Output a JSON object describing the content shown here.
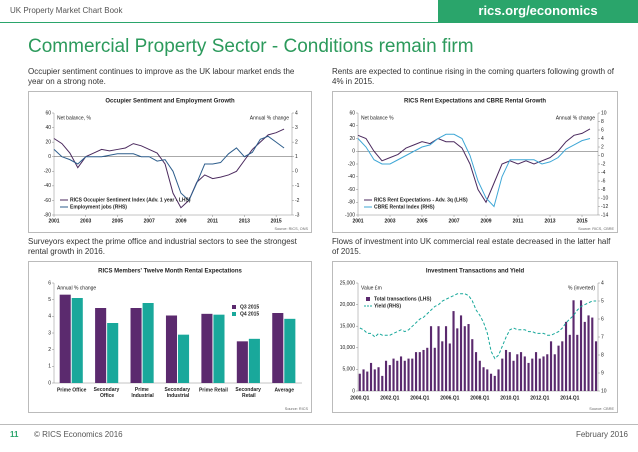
{
  "header": {
    "book_title": "UK Property Market Chart Book",
    "url": "rics.org/economics",
    "title": "Commercial Property Sector - Conditions remain firm"
  },
  "paragraphs": [
    "Occupier sentiment continues to improve as the UK labour market ends the year on a strong note.",
    "Rents are expected to continue rising in the coming quarters following growth of 4% in 2015.",
    "Surveyors expect the prime office and industrial sectors to see the strongest rental growth in 2016.",
    "Flows of investment into UK commercial real estate decreased in the latter half of 2015."
  ],
  "footer": {
    "page": "11",
    "copyright": "© RICS Economics 2016",
    "date": "February 2016"
  },
  "chart_data": [
    {
      "type": "line",
      "title": "Occupier Sentiment and Employment Growth",
      "ylabel": "Net balance, %",
      "y2label": "Annual % change",
      "source": "Source: RICS, ONS",
      "x": [
        2001,
        2001.5,
        2002,
        2002.5,
        2003,
        2003.5,
        2004,
        2004.5,
        2005,
        2005.5,
        2006,
        2006.5,
        2007,
        2007.5,
        2008,
        2008.5,
        2009,
        2009.5,
        2010,
        2010.5,
        2011,
        2011.5,
        2012,
        2012.5,
        2013,
        2013.5,
        2014,
        2014.5,
        2015,
        2015.5
      ],
      "xlim": [
        2001,
        2016
      ],
      "xticks": [
        2001,
        2003,
        2005,
        2007,
        2009,
        2011,
        2013,
        2015
      ],
      "ylim": [
        -80,
        60
      ],
      "yticks": [
        -80,
        -60,
        -40,
        -20,
        0,
        20,
        40,
        60
      ],
      "y2lim": [
        -3,
        4
      ],
      "y2ticks": [
        -3,
        -2,
        -1,
        0,
        1,
        2,
        3,
        4
      ],
      "legend": "lower left",
      "series": [
        {
          "name": "RICS Occupier Sentiment Index (Adv. 1 year - LHS)",
          "color": "#4b2a5e",
          "values": [
            25,
            18,
            5,
            -15,
            0,
            5,
            10,
            8,
            10,
            12,
            18,
            15,
            10,
            5,
            -10,
            -50,
            -70,
            -60,
            -35,
            -25,
            -30,
            -28,
            -25,
            -20,
            -5,
            10,
            20,
            30,
            33,
            38
          ]
        },
        {
          "name": "Employment jobs (RHS)",
          "color": "#2e5e8c",
          "axis": "y2",
          "values": [
            1.5,
            1.0,
            0.8,
            0.5,
            1.0,
            1.0,
            1.0,
            1.1,
            1.2,
            1.2,
            1.2,
            1.0,
            1.0,
            0.7,
            0.8,
            0,
            -1.5,
            -2.0,
            -0.8,
            0.5,
            0.5,
            0.6,
            1.2,
            1.6,
            1.0,
            1.3,
            2.2,
            2.4,
            2.0,
            1.6
          ]
        }
      ]
    },
    {
      "type": "line",
      "title": "RICS Rent Expectations and CBRE Rental Growth",
      "ylabel": "Net balance %",
      "y2label": "Annual % change",
      "source": "Source: RICS, CBRE",
      "x": [
        2001,
        2001.5,
        2002,
        2002.5,
        2003,
        2003.5,
        2004,
        2004.5,
        2005,
        2005.5,
        2006,
        2006.5,
        2007,
        2007.5,
        2008,
        2008.5,
        2009,
        2009.5,
        2010,
        2010.5,
        2011,
        2011.5,
        2012,
        2012.5,
        2013,
        2013.5,
        2014,
        2014.5,
        2015,
        2015.5
      ],
      "xlim": [
        2001,
        2016
      ],
      "xticks": [
        2001,
        2003,
        2005,
        2007,
        2009,
        2011,
        2013,
        2015
      ],
      "ylim": [
        -100,
        60
      ],
      "yticks": [
        -100,
        -80,
        -60,
        -40,
        -20,
        0,
        20,
        40,
        60
      ],
      "y2lim": [
        -14,
        10
      ],
      "y2ticks": [
        -14,
        -12,
        -10,
        -8,
        -6,
        -4,
        -2,
        0,
        2,
        4,
        6,
        8,
        10
      ],
      "legend": "lower left",
      "series": [
        {
          "name": "RICS Rent Expectations - Adv. 3q (LHS)",
          "color": "#4b2a5e",
          "values": [
            25,
            20,
            0,
            -15,
            -10,
            -5,
            5,
            10,
            15,
            12,
            20,
            15,
            15,
            5,
            -20,
            -60,
            -80,
            -50,
            -20,
            -15,
            -20,
            -15,
            -20,
            -15,
            -10,
            0,
            15,
            25,
            28,
            35
          ]
        },
        {
          "name": "CBRE Rental Index (RHS)",
          "color": "#3fa7d6",
          "axis": "y2",
          "values": [
            4,
            2,
            -1,
            -2,
            -2,
            -1,
            0,
            1,
            2,
            2.5,
            4,
            5,
            5,
            4,
            0,
            -6,
            -10,
            -12,
            -5,
            -1,
            -1,
            -1,
            -1,
            -2,
            -1.5,
            -0.5,
            1.5,
            2.5,
            3.5,
            4
          ]
        }
      ]
    },
    {
      "type": "bar",
      "title": "RICS Members' Twelve Month Rental Expectations",
      "ylabel": "Annual % change",
      "source": "Source: RICS",
      "categories": [
        "Prime Office",
        "Secondary Office",
        "Prime Industrial",
        "Secondary Industrial",
        "Prime Retail",
        "Secondary Retail",
        "Average"
      ],
      "ylim": [
        0,
        6
      ],
      "yticks": [
        0,
        1,
        2,
        3,
        4,
        5,
        6
      ],
      "legend": "upper right",
      "series": [
        {
          "name": "Q3 2015",
          "color": "#5b2a6e",
          "values": [
            5.3,
            4.5,
            4.5,
            4.05,
            4.15,
            2.5,
            4.2
          ]
        },
        {
          "name": "Q4 2015",
          "color": "#19a89b",
          "values": [
            5.1,
            3.6,
            4.8,
            2.9,
            4.1,
            2.65,
            3.85
          ]
        }
      ]
    },
    {
      "type": "bar",
      "title": "Investment Transactions and Yield",
      "ylabel": "Value £m",
      "y2label": "% (inverted)",
      "source": "Source: CBRE",
      "categories": [
        "2000.Q1",
        null,
        null,
        null,
        null,
        null,
        null,
        null,
        "2002.Q1",
        null,
        null,
        null,
        null,
        null,
        null,
        null,
        "2004.Q1",
        null,
        null,
        null,
        null,
        null,
        null,
        null,
        "2006.Q1",
        null,
        null,
        null,
        null,
        null,
        null,
        null,
        "2008.Q1",
        null,
        null,
        null,
        null,
        null,
        null,
        null,
        "2010.Q1",
        null,
        null,
        null,
        null,
        null,
        null,
        null,
        "2012.Q1",
        null,
        null,
        null,
        null,
        null,
        null,
        null,
        "2014.Q1",
        null,
        null,
        null,
        null,
        null,
        null,
        null
      ],
      "ylim": [
        0,
        25000
      ],
      "yticks": [
        0,
        {
          "value": 5000,
          "label": "5,000"
        },
        {
          "value": 10000,
          "label": "10,000"
        },
        {
          "value": 15000,
          "label": "15,000"
        },
        {
          "value": 20000,
          "label": "20,000"
        },
        {
          "value": 25000,
          "label": "25,000"
        }
      ],
      "y2lim": [
        10,
        4
      ],
      "y2ticks": [
        4,
        5,
        6,
        7,
        8,
        9,
        10
      ],
      "legend": "upper left",
      "series": [
        {
          "name": "Total transactions (LHS)",
          "color": "#5b2a6e",
          "values": [
            4000,
            5000,
            4500,
            6500,
            5000,
            5500,
            3500,
            7000,
            6000,
            7500,
            7000,
            8000,
            7000,
            7500,
            7500,
            9000,
            9000,
            9500,
            10000,
            15000,
            10000,
            15000,
            11500,
            15000,
            11000,
            18500,
            14500,
            17500,
            15000,
            15500,
            12000,
            9000,
            7000,
            5500,
            5000,
            4000,
            3500,
            5000,
            7500,
            9500,
            9000,
            7000,
            8500,
            9000,
            8000,
            6500,
            7500,
            9000,
            7500,
            8000,
            8500,
            11500,
            8500,
            10500,
            11500,
            16000,
            13000,
            21000,
            13000,
            21000,
            16000,
            17500,
            17000,
            11500
          ]
        },
        {
          "name": "Yield (RHS)",
          "color": "#19a89b",
          "type": "line",
          "axis": "y2",
          "dash": true,
          "values": [
            6.5,
            6.6,
            6.8,
            6.8,
            7.0,
            6.8,
            6.9,
            6.9,
            6.9,
            6.8,
            6.7,
            6.6,
            6.7,
            6.6,
            6.4,
            6.2,
            6.0,
            5.9,
            5.7,
            5.5,
            5.3,
            5.2,
            5.0,
            4.9,
            4.8,
            4.7,
            4.6,
            4.6,
            4.6,
            4.7,
            5.0,
            5.5,
            5.8,
            6.2,
            6.8,
            7.8,
            8.2,
            8.0,
            7.5,
            7.0,
            6.6,
            6.5,
            6.6,
            6.6,
            6.6,
            6.7,
            6.7,
            6.8,
            6.8,
            6.8,
            6.9,
            6.9,
            6.8,
            6.7,
            6.5,
            6.2,
            6.0,
            5.8,
            5.5,
            5.3,
            5.2,
            5.1,
            5.0,
            5.0
          ]
        }
      ]
    }
  ]
}
